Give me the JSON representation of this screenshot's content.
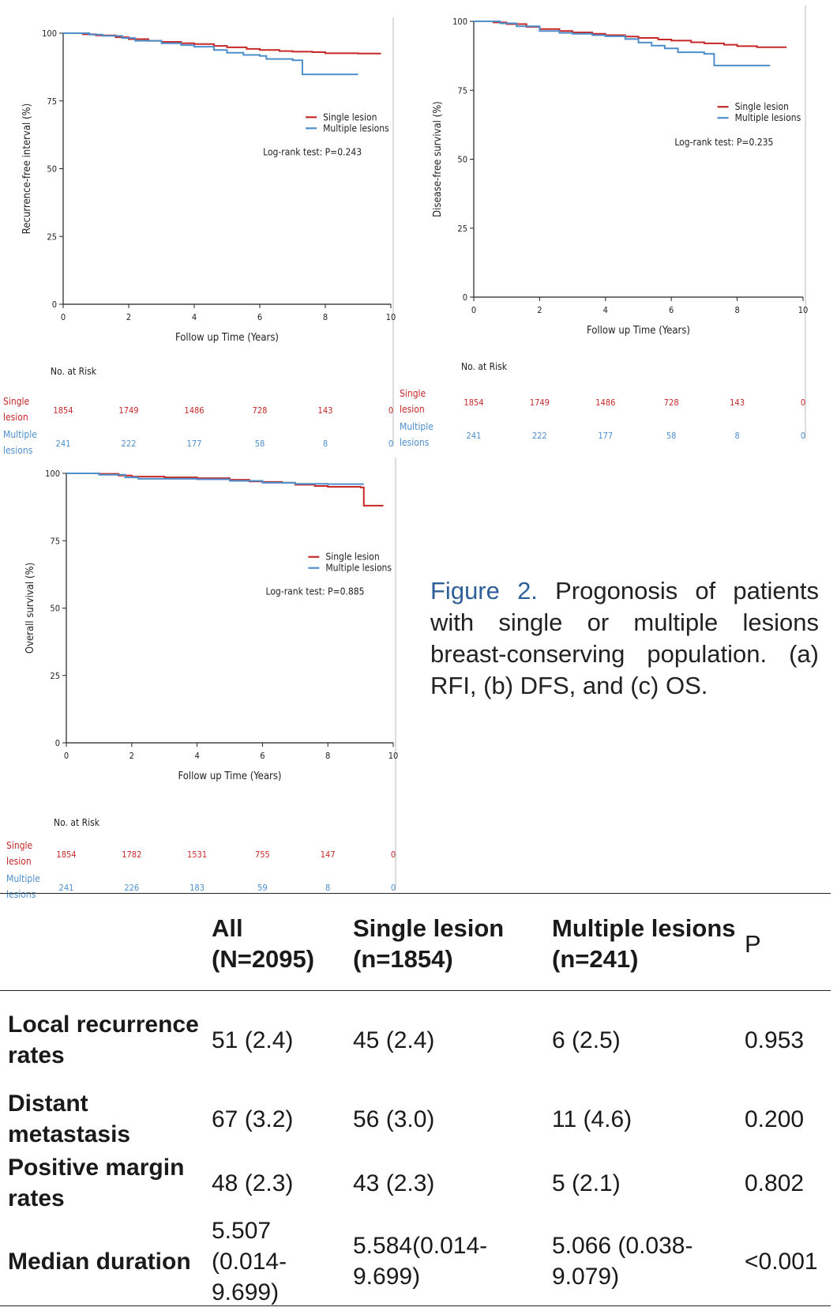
{
  "colors": {
    "single": "#c62828",
    "multiple": "#4d8fcb",
    "axis": "#222222",
    "caption_accent": "#2f5f99"
  },
  "chart_data": [
    {
      "id": "a",
      "type": "line",
      "title": "",
      "ylabel": "Recurrence-free interval (%)",
      "xlabel": "Follow up Time (Years)",
      "xlim": [
        0,
        10
      ],
      "ylim": [
        0,
        100
      ],
      "xticks": [
        "0",
        "2",
        "4",
        "6",
        "8",
        "10"
      ],
      "yticks": [
        "0",
        "25",
        "50",
        "75",
        "100"
      ],
      "legend": [
        "Single lesion",
        "Multiple lesions"
      ],
      "annotation": "Log-rank test: P=0.243",
      "series": [
        {
          "name": "Single lesion",
          "points": [
            [
              0,
              100
            ],
            [
              0.6,
              99.6
            ],
            [
              1,
              99.2
            ],
            [
              1.6,
              98.5
            ],
            [
              2,
              97.8
            ],
            [
              2.6,
              97.2
            ],
            [
              3,
              96.8
            ],
            [
              3.6,
              96.3
            ],
            [
              4,
              96
            ],
            [
              4.6,
              95.3
            ],
            [
              5,
              94.8
            ],
            [
              5.6,
              94.2
            ],
            [
              6,
              93.8
            ],
            [
              6.6,
              93.4
            ],
            [
              7,
              93.2
            ],
            [
              7.6,
              93
            ],
            [
              8,
              92.6
            ],
            [
              9,
              92.5
            ],
            [
              9.7,
              92.5
            ]
          ]
        },
        {
          "name": "Multiple lesions",
          "points": [
            [
              0,
              100
            ],
            [
              0.8,
              99.5
            ],
            [
              1.2,
              99
            ],
            [
              1.8,
              98.2
            ],
            [
              2.2,
              97.2
            ],
            [
              3,
              96.3
            ],
            [
              3.6,
              95.6
            ],
            [
              4,
              95
            ],
            [
              4.6,
              93.8
            ],
            [
              5,
              92.8
            ],
            [
              5.5,
              92
            ],
            [
              6,
              91.6
            ],
            [
              6.2,
              90.5
            ],
            [
              7,
              90
            ],
            [
              7.3,
              84.8
            ],
            [
              8,
              84.8
            ],
            [
              9,
              84.8
            ]
          ]
        }
      ],
      "risk": {
        "heading": "No. at Risk",
        "times": [
          0,
          2,
          4,
          6,
          8,
          10
        ],
        "rows": [
          {
            "label1": "Single",
            "label2": "lesion",
            "values": [
              "1854",
              "1749",
              "1486",
              "728",
              "143",
              "0"
            ]
          },
          {
            "label1": "Multiple",
            "label2": "lesions",
            "values": [
              "241",
              "222",
              "177",
              "58",
              "8",
              "0"
            ]
          }
        ]
      }
    },
    {
      "id": "b",
      "type": "line",
      "title": "",
      "ylabel": "Disease-free survival (%)",
      "xlabel": "Follow up Time (Years)",
      "xlim": [
        0,
        10
      ],
      "ylim": [
        0,
        100
      ],
      "xticks": [
        "0",
        "2",
        "4",
        "6",
        "8",
        "10"
      ],
      "yticks": [
        "0",
        "25",
        "50",
        "75",
        "100"
      ],
      "legend": [
        "Single lesion",
        "Multiple lesions"
      ],
      "annotation": "Log-rank test: P=0.235",
      "series": [
        {
          "name": "Single lesion",
          "points": [
            [
              0,
              100
            ],
            [
              0.6,
              99.6
            ],
            [
              1,
              99
            ],
            [
              1.6,
              98
            ],
            [
              2,
              97.2
            ],
            [
              2.6,
              96.5
            ],
            [
              3,
              96
            ],
            [
              3.6,
              95.5
            ],
            [
              4,
              95
            ],
            [
              4.6,
              94.5
            ],
            [
              5,
              94
            ],
            [
              5.6,
              93.4
            ],
            [
              6,
              93
            ],
            [
              6.6,
              92.4
            ],
            [
              7,
              92
            ],
            [
              7.6,
              91.5
            ],
            [
              8,
              91
            ],
            [
              8.6,
              90.6
            ],
            [
              9.5,
              90.6
            ]
          ]
        },
        {
          "name": "Multiple lesions",
          "points": [
            [
              0,
              100
            ],
            [
              0.8,
              99.3
            ],
            [
              1.3,
              98.2
            ],
            [
              2,
              96.5
            ],
            [
              2.6,
              95.8
            ],
            [
              3,
              95.5
            ],
            [
              3.6,
              95
            ],
            [
              4,
              94.6
            ],
            [
              4.6,
              93.6
            ],
            [
              5,
              92.3
            ],
            [
              5.4,
              91.2
            ],
            [
              5.8,
              90.2
            ],
            [
              6.2,
              88.8
            ],
            [
              7,
              88.2
            ],
            [
              7.3,
              84
            ],
            [
              8,
              84
            ],
            [
              9,
              84
            ]
          ]
        }
      ],
      "risk": {
        "heading": "No. at Risk",
        "times": [
          0,
          2,
          4,
          6,
          8,
          10
        ],
        "rows": [
          {
            "label1": "Single",
            "label2": "lesion",
            "values": [
              "1854",
              "1749",
              "1486",
              "728",
              "143",
              "0"
            ]
          },
          {
            "label1": "Multiple",
            "label2": "lesions",
            "values": [
              "241",
              "222",
              "177",
              "58",
              "8",
              "0"
            ]
          }
        ]
      }
    },
    {
      "id": "c",
      "type": "line",
      "title": "",
      "ylabel": "Overall survival (%)",
      "xlabel": "Follow up Time (Years)",
      "xlim": [
        0,
        10
      ],
      "ylim": [
        0,
        100
      ],
      "xticks": [
        "0",
        "2",
        "4",
        "6",
        "8",
        "10"
      ],
      "yticks": [
        "0",
        "25",
        "50",
        "75",
        "100"
      ],
      "legend": [
        "Single lesion",
        "Multiple lesions"
      ],
      "annotation": "Log-rank test: P=0.885",
      "series": [
        {
          "name": "Single lesion",
          "points": [
            [
              0,
              100
            ],
            [
              1,
              99.8
            ],
            [
              1.6,
              99.2
            ],
            [
              2,
              98.8
            ],
            [
              3,
              98.5
            ],
            [
              4,
              98.2
            ],
            [
              5,
              97.6
            ],
            [
              5.6,
              97
            ],
            [
              6,
              96.8
            ],
            [
              6.6,
              96.5
            ],
            [
              7,
              95.8
            ],
            [
              7.6,
              95.3
            ],
            [
              8,
              95
            ],
            [
              9,
              94.8
            ],
            [
              9.1,
              88
            ],
            [
              9.7,
              88
            ]
          ]
        },
        {
          "name": "Multiple lesions",
          "points": [
            [
              0,
              100
            ],
            [
              1,
              99.5
            ],
            [
              1.8,
              98.5
            ],
            [
              2.2,
              98
            ],
            [
              3,
              98
            ],
            [
              4,
              97.8
            ],
            [
              5,
              97.2
            ],
            [
              6,
              96.5
            ],
            [
              7,
              96.1
            ],
            [
              8,
              96
            ],
            [
              9.1,
              96
            ]
          ]
        }
      ],
      "risk": {
        "heading": "No. at Risk",
        "times": [
          0,
          2,
          4,
          6,
          8,
          10
        ],
        "rows": [
          {
            "label1": "Single",
            "label2": "lesion",
            "values": [
              "1854",
              "1782",
              "1531",
              "755",
              "147",
              "0"
            ]
          },
          {
            "label1": "Multiple",
            "label2": "lesions",
            "values": [
              "241",
              "226",
              "183",
              "59",
              "8",
              "0"
            ]
          }
        ]
      }
    }
  ],
  "caption": {
    "fig_label": "Figure",
    "fig_number": "2.",
    "text": "Progonosis of patients with single or multiple lesions breast-conserving population. (a) RFI, (b) DFS, and (c) OS."
  },
  "table": {
    "headers": [
      {
        "line1": "",
        "line2": ""
      },
      {
        "line1": "All",
        "line2": "(N=2095)"
      },
      {
        "line1": "Single lesion",
        "line2": "(n=1854)"
      },
      {
        "line1": "Multiple lesions",
        "line2": "(n=241)"
      },
      {
        "line1": "P",
        "line2": ""
      }
    ],
    "rows": [
      {
        "label": [
          "Local recurrence",
          "rates"
        ],
        "all": [
          "51 (2.4)"
        ],
        "single": [
          "45 (2.4)"
        ],
        "multiple": [
          "6 (2.5)"
        ],
        "p": "0.953"
      },
      {
        "label": [
          "Distant",
          "metastasis"
        ],
        "all": [
          "67 (3.2)"
        ],
        "single": [
          "56 (3.0)"
        ],
        "multiple": [
          "11 (4.6)"
        ],
        "p": "0.200"
      },
      {
        "label": [
          "Positive margin",
          "rates"
        ],
        "all": [
          "48 (2.3)"
        ],
        "single": [
          "43 (2.3)"
        ],
        "multiple": [
          "5 (2.1)"
        ],
        "p": "0.802"
      },
      {
        "label": [
          "Median duration"
        ],
        "all": [
          "5.507",
          "(0.014-",
          "9.699)"
        ],
        "single": [
          "5.584(0.014-",
          "9.699)"
        ],
        "multiple": [
          "5.066 (0.038-",
          "9.079)"
        ],
        "p": "<0.001"
      }
    ]
  }
}
